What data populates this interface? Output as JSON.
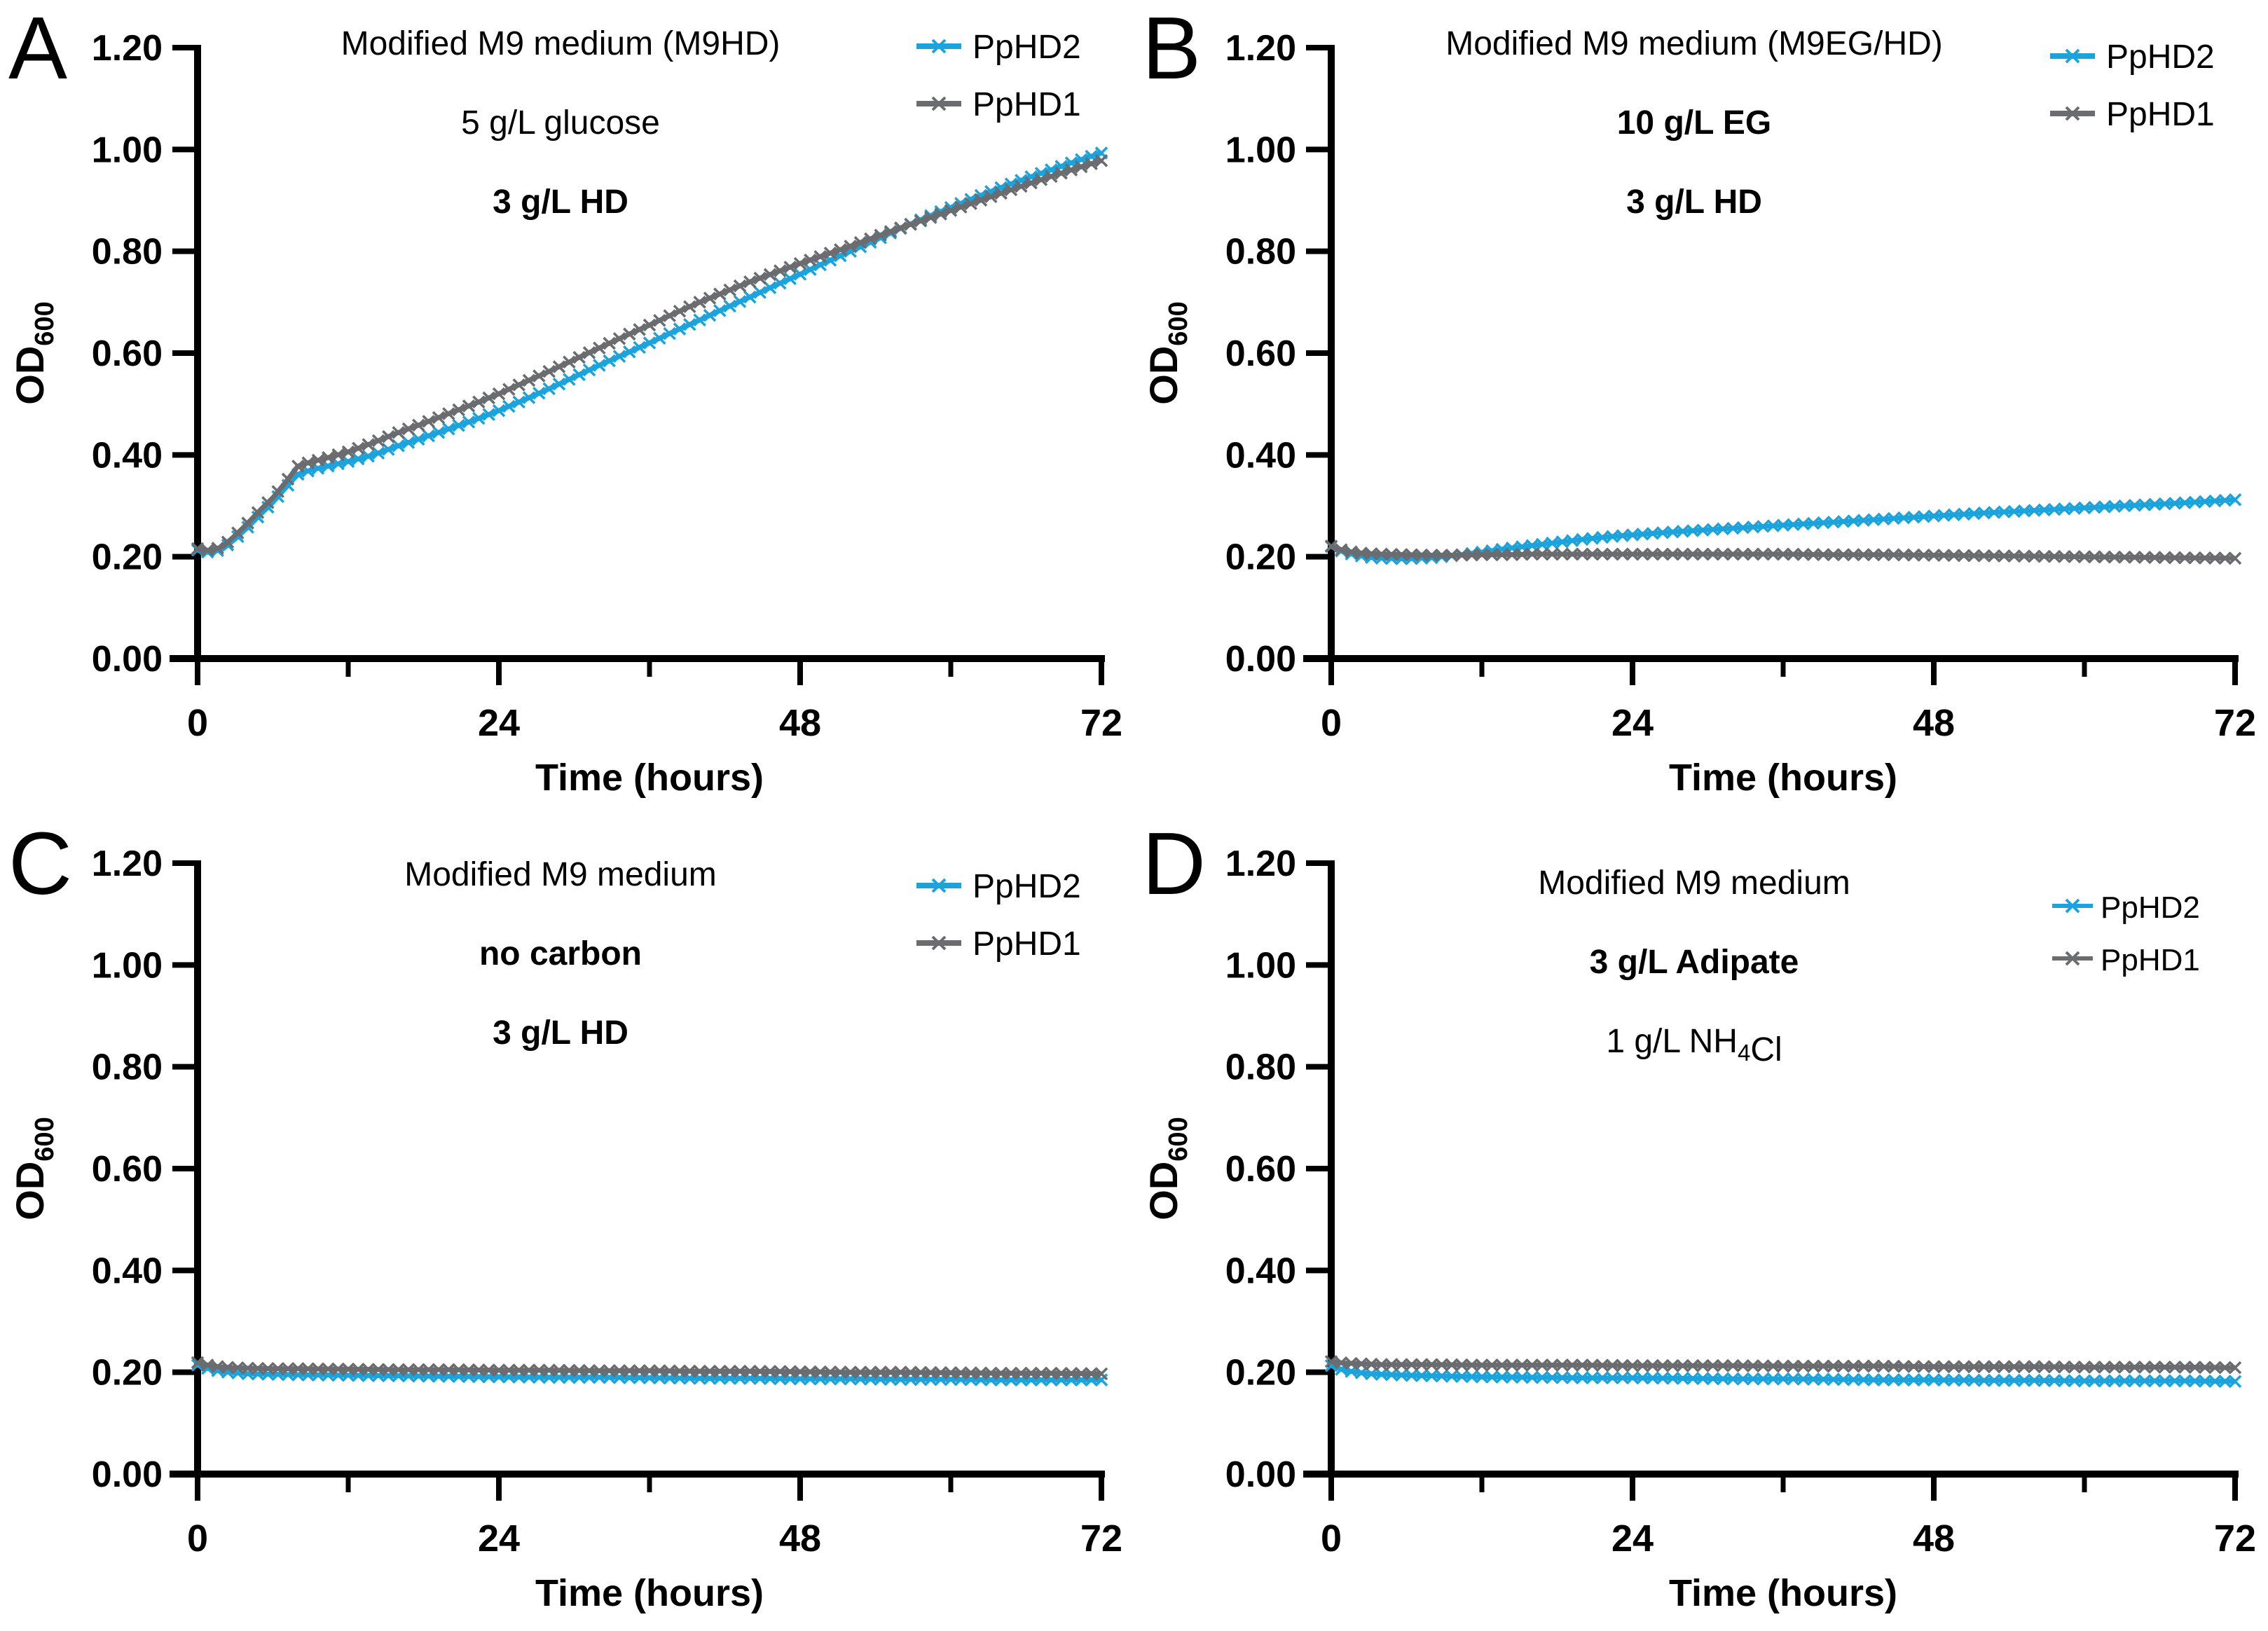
{
  "figure": {
    "background": "#ffffff",
    "axis_color": "#000000",
    "text_color": "#000000",
    "colors": {
      "pphd2": "#1CA3DC",
      "pphd1": "#6B6C6F"
    }
  },
  "chart_data": [
    {
      "type": "line",
      "panel_label": "A",
      "title_lines": [
        {
          "bold": false,
          "segments": [
            {
              "text": "Modified M9 medium (M9HD)"
            }
          ]
        },
        {
          "bold": false,
          "segments": [
            {
              "text": "5 g/L glucose"
            }
          ]
        },
        {
          "bold": true,
          "segments": [
            {
              "text": "3 g/L HD"
            }
          ]
        }
      ],
      "xlabel": "Time (hours)",
      "ylabel_segments": [
        {
          "text": "OD"
        },
        {
          "text": "600",
          "sub": true
        }
      ],
      "xlim": [
        0,
        72
      ],
      "ylim": [
        0,
        1.2
      ],
      "xticks": [
        {
          "v": 0,
          "label": "0"
        },
        {
          "v": 24,
          "label": "24"
        },
        {
          "v": 48,
          "label": "48"
        },
        {
          "v": 72,
          "label": "72"
        }
      ],
      "xticks_minor": [
        12,
        36,
        60
      ],
      "yticks": [
        {
          "v": 0.0,
          "label": "0.00"
        },
        {
          "v": 0.2,
          "label": "0.20"
        },
        {
          "v": 0.4,
          "label": "0.40"
        },
        {
          "v": 0.6,
          "label": "0.60"
        },
        {
          "v": 0.8,
          "label": "0.80"
        },
        {
          "v": 1.0,
          "label": "1.00"
        },
        {
          "v": 1.2,
          "label": "1.20"
        }
      ],
      "grid": false,
      "legend_position": "top-right",
      "legend": [
        {
          "name": "PpHD2",
          "color": "#1CA3DC"
        },
        {
          "name": "PpHD1",
          "color": "#6B6C6F"
        }
      ],
      "series": [
        {
          "name": "PpHD2",
          "color": "#1CA3DC",
          "x": [
            0,
            1,
            2,
            3,
            4,
            5,
            6,
            7,
            8,
            9,
            10,
            12,
            14,
            16,
            18,
            20,
            22,
            24,
            26,
            28,
            30,
            32,
            34,
            36,
            38,
            40,
            42,
            44,
            46,
            48,
            50,
            52,
            54,
            56,
            58,
            60,
            62,
            64,
            66,
            68,
            70,
            72
          ],
          "y": [
            0.213,
            0.208,
            0.215,
            0.235,
            0.258,
            0.283,
            0.307,
            0.335,
            0.362,
            0.37,
            0.376,
            0.387,
            0.4,
            0.418,
            0.434,
            0.451,
            0.468,
            0.487,
            0.508,
            0.53,
            0.553,
            0.576,
            0.598,
            0.62,
            0.643,
            0.665,
            0.688,
            0.71,
            0.733,
            0.755,
            0.778,
            0.8,
            0.822,
            0.845,
            0.866,
            0.886,
            0.906,
            0.925,
            0.943,
            0.96,
            0.977,
            0.993
          ]
        },
        {
          "name": "PpHD1",
          "color": "#6B6C6F",
          "x": [
            0,
            1,
            2,
            3,
            4,
            5,
            6,
            7,
            8,
            9,
            10,
            12,
            14,
            16,
            18,
            20,
            22,
            24,
            26,
            28,
            30,
            32,
            34,
            36,
            38,
            40,
            42,
            44,
            46,
            48,
            50,
            52,
            54,
            56,
            58,
            60,
            62,
            64,
            66,
            68,
            70,
            72
          ],
          "y": [
            0.216,
            0.212,
            0.22,
            0.242,
            0.266,
            0.292,
            0.316,
            0.346,
            0.378,
            0.386,
            0.392,
            0.406,
            0.424,
            0.444,
            0.462,
            0.481,
            0.5,
            0.52,
            0.542,
            0.564,
            0.587,
            0.61,
            0.633,
            0.655,
            0.678,
            0.7,
            0.72,
            0.74,
            0.758,
            0.776,
            0.793,
            0.81,
            0.828,
            0.846,
            0.863,
            0.88,
            0.897,
            0.914,
            0.931,
            0.947,
            0.963,
            0.978
          ]
        }
      ]
    },
    {
      "type": "line",
      "panel_label": "B",
      "title_lines": [
        {
          "bold": false,
          "segments": [
            {
              "text": "Modified M9 medium (M9EG/HD)"
            }
          ]
        },
        {
          "bold": true,
          "segments": [
            {
              "text": "10 g/L EG"
            }
          ]
        },
        {
          "bold": true,
          "segments": [
            {
              "text": "3 g/L HD"
            }
          ]
        }
      ],
      "xlabel": "Time (hours)",
      "ylabel_segments": [
        {
          "text": "OD"
        },
        {
          "text": "600",
          "sub": true
        }
      ],
      "xlim": [
        0,
        72
      ],
      "ylim": [
        0,
        1.2
      ],
      "xticks": [
        {
          "v": 0,
          "label": "0"
        },
        {
          "v": 24,
          "label": "24"
        },
        {
          "v": 48,
          "label": "48"
        },
        {
          "v": 72,
          "label": "72"
        }
      ],
      "xticks_minor": [
        12,
        36,
        60
      ],
      "yticks": [
        {
          "v": 0.0,
          "label": "0.00"
        },
        {
          "v": 0.2,
          "label": "0.20"
        },
        {
          "v": 0.4,
          "label": "0.40"
        },
        {
          "v": 0.6,
          "label": "0.60"
        },
        {
          "v": 0.8,
          "label": "0.80"
        },
        {
          "v": 1.0,
          "label": "1.00"
        },
        {
          "v": 1.2,
          "label": "1.20"
        }
      ],
      "grid": false,
      "legend_position": "top-right",
      "legend": [
        {
          "name": "PpHD2",
          "color": "#1CA3DC"
        },
        {
          "name": "PpHD1",
          "color": "#6B6C6F"
        }
      ],
      "series": [
        {
          "name": "PpHD2",
          "color": "#1CA3DC",
          "x": [
            0,
            1,
            2,
            3,
            4,
            6,
            8,
            10,
            12,
            14,
            16,
            18,
            20,
            22,
            24,
            28,
            32,
            36,
            40,
            44,
            48,
            52,
            56,
            60,
            64,
            68,
            72
          ],
          "y": [
            0.22,
            0.209,
            0.203,
            0.199,
            0.197,
            0.196,
            0.198,
            0.203,
            0.209,
            0.216,
            0.222,
            0.228,
            0.234,
            0.239,
            0.243,
            0.25,
            0.256,
            0.262,
            0.268,
            0.274,
            0.28,
            0.286,
            0.291,
            0.296,
            0.301,
            0.306,
            0.312
          ]
        },
        {
          "name": "PpHD1",
          "color": "#6B6C6F",
          "x": [
            0,
            1,
            2,
            3,
            4,
            6,
            8,
            10,
            12,
            14,
            16,
            18,
            20,
            22,
            24,
            28,
            32,
            36,
            40,
            44,
            48,
            52,
            56,
            60,
            64,
            68,
            72
          ],
          "y": [
            0.221,
            0.212,
            0.208,
            0.206,
            0.205,
            0.204,
            0.203,
            0.203,
            0.204,
            0.204,
            0.205,
            0.205,
            0.205,
            0.205,
            0.205,
            0.205,
            0.205,
            0.205,
            0.204,
            0.204,
            0.203,
            0.202,
            0.201,
            0.2,
            0.199,
            0.198,
            0.197
          ]
        }
      ]
    },
    {
      "type": "line",
      "panel_label": "C",
      "title_lines": [
        {
          "bold": false,
          "segments": [
            {
              "text": "Modified M9 medium"
            }
          ]
        },
        {
          "bold": true,
          "segments": [
            {
              "text": "no carbon"
            }
          ]
        },
        {
          "bold": true,
          "segments": [
            {
              "text": "3 g/L HD"
            }
          ]
        }
      ],
      "xlabel": "Time (hours)",
      "ylabel_segments": [
        {
          "text": "OD"
        },
        {
          "text": "600",
          "sub": true
        }
      ],
      "xlim": [
        0,
        72
      ],
      "ylim": [
        0,
        1.2
      ],
      "xticks": [
        {
          "v": 0,
          "label": "0"
        },
        {
          "v": 24,
          "label": "24"
        },
        {
          "v": 48,
          "label": "48"
        },
        {
          "v": 72,
          "label": "72"
        }
      ],
      "xticks_minor": [
        12,
        36,
        60
      ],
      "yticks": [
        {
          "v": 0.0,
          "label": "0.00"
        },
        {
          "v": 0.2,
          "label": "0.20"
        },
        {
          "v": 0.4,
          "label": "0.40"
        },
        {
          "v": 0.6,
          "label": "0.60"
        },
        {
          "v": 0.8,
          "label": "0.80"
        },
        {
          "v": 1.0,
          "label": "1.00"
        },
        {
          "v": 1.2,
          "label": "1.20"
        }
      ],
      "grid": false,
      "legend_position": "top-right",
      "legend": [
        {
          "name": "PpHD2",
          "color": "#1CA3DC"
        },
        {
          "name": "PpHD1",
          "color": "#6B6C6F"
        }
      ],
      "series": [
        {
          "name": "PpHD2",
          "color": "#1CA3DC",
          "x": [
            0,
            1,
            2,
            3,
            4,
            6,
            8,
            12,
            16,
            20,
            24,
            28,
            32,
            36,
            40,
            44,
            48,
            52,
            56,
            60,
            64,
            68,
            72
          ],
          "y": [
            0.214,
            0.206,
            0.201,
            0.199,
            0.197,
            0.196,
            0.195,
            0.194,
            0.193,
            0.192,
            0.191,
            0.19,
            0.19,
            0.189,
            0.188,
            0.188,
            0.187,
            0.187,
            0.186,
            0.186,
            0.185,
            0.185,
            0.185
          ]
        },
        {
          "name": "PpHD1",
          "color": "#6B6C6F",
          "x": [
            0,
            1,
            2,
            3,
            4,
            6,
            8,
            12,
            16,
            20,
            24,
            28,
            32,
            36,
            40,
            44,
            48,
            52,
            56,
            60,
            64,
            68,
            72
          ],
          "y": [
            0.219,
            0.213,
            0.21,
            0.209,
            0.208,
            0.207,
            0.207,
            0.206,
            0.205,
            0.205,
            0.204,
            0.204,
            0.203,
            0.203,
            0.202,
            0.202,
            0.201,
            0.2,
            0.2,
            0.199,
            0.198,
            0.198,
            0.197
          ]
        }
      ]
    },
    {
      "type": "line",
      "panel_label": "D",
      "title_lines": [
        {
          "bold": false,
          "segments": [
            {
              "text": "Modified M9 medium"
            }
          ]
        },
        {
          "bold": true,
          "segments": [
            {
              "text": "3 g/L Adipate"
            }
          ]
        },
        {
          "bold": false,
          "segments": [
            {
              "text": "1 g/L NH"
            },
            {
              "text": "4",
              "sub": true
            },
            {
              "text": "Cl"
            }
          ]
        }
      ],
      "xlabel": "Time (hours)",
      "ylabel_segments": [
        {
          "text": "OD"
        },
        {
          "text": "600",
          "sub": true
        }
      ],
      "xlim": [
        0,
        72
      ],
      "ylim": [
        0,
        1.2
      ],
      "xticks": [
        {
          "v": 0,
          "label": "0"
        },
        {
          "v": 24,
          "label": "24"
        },
        {
          "v": 48,
          "label": "48"
        },
        {
          "v": 72,
          "label": "72"
        }
      ],
      "xticks_minor": [
        12,
        36,
        60
      ],
      "yticks": [
        {
          "v": 0.0,
          "label": "0.00"
        },
        {
          "v": 0.2,
          "label": "0.20"
        },
        {
          "v": 0.4,
          "label": "0.40"
        },
        {
          "v": 0.6,
          "label": "0.60"
        },
        {
          "v": 0.8,
          "label": "0.80"
        },
        {
          "v": 1.0,
          "label": "1.00"
        },
        {
          "v": 1.2,
          "label": "1.20"
        }
      ],
      "grid": false,
      "legend_position": "top-right",
      "legend": [
        {
          "name": "PpHD2",
          "color": "#1CA3DC"
        },
        {
          "name": "PpHD1",
          "color": "#6B6C6F"
        }
      ],
      "series": [
        {
          "name": "PpHD2",
          "color": "#1CA3DC",
          "x": [
            0,
            1,
            2,
            3,
            4,
            6,
            8,
            12,
            16,
            20,
            24,
            28,
            32,
            36,
            40,
            44,
            48,
            52,
            56,
            60,
            64,
            68,
            72
          ],
          "y": [
            0.213,
            0.204,
            0.2,
            0.197,
            0.196,
            0.194,
            0.193,
            0.191,
            0.19,
            0.189,
            0.189,
            0.188,
            0.187,
            0.187,
            0.186,
            0.185,
            0.185,
            0.184,
            0.184,
            0.183,
            0.183,
            0.183,
            0.182
          ]
        },
        {
          "name": "PpHD1",
          "color": "#6B6C6F",
          "x": [
            0,
            1,
            2,
            3,
            4,
            6,
            8,
            12,
            16,
            20,
            24,
            28,
            32,
            36,
            40,
            44,
            48,
            52,
            56,
            60,
            64,
            68,
            72
          ],
          "y": [
            0.221,
            0.218,
            0.217,
            0.216,
            0.215,
            0.215,
            0.215,
            0.214,
            0.214,
            0.214,
            0.213,
            0.213,
            0.213,
            0.212,
            0.212,
            0.212,
            0.211,
            0.211,
            0.211,
            0.21,
            0.21,
            0.21,
            0.209
          ]
        }
      ]
    }
  ]
}
